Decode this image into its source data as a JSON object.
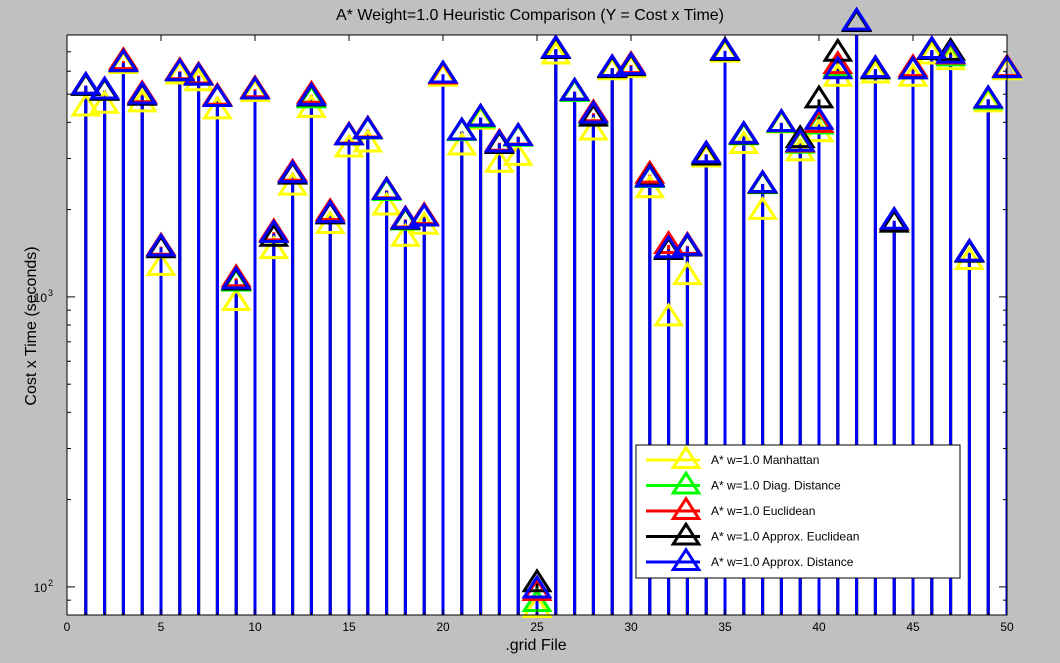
{
  "chart_data": {
    "type": "stem",
    "title": "A* Weight=1.0 Heuristic Comparison (Y = Cost x Time)",
    "xlabel": ".grid File",
    "ylabel": "Cost x Time (seconds)",
    "xlim": [
      0,
      50
    ],
    "ylim": [
      80,
      8000
    ],
    "yscale": "log",
    "x_ticks": [
      0,
      5,
      10,
      15,
      20,
      25,
      30,
      35,
      40,
      45,
      50
    ],
    "y_ticks": [
      {
        "value": 100,
        "base": "10",
        "exp": "2"
      },
      {
        "value": 1000,
        "base": "10",
        "exp": "3"
      }
    ],
    "grid": false,
    "legend_position": "lower-right",
    "marker": "triangle-up",
    "x": [
      1,
      2,
      3,
      4,
      5,
      6,
      7,
      8,
      9,
      10,
      11,
      12,
      13,
      14,
      15,
      16,
      17,
      18,
      19,
      20,
      21,
      22,
      23,
      24,
      25,
      26,
      27,
      28,
      29,
      30,
      31,
      32,
      33,
      34,
      35,
      36,
      37,
      38,
      39,
      40,
      41,
      42,
      43,
      44,
      45,
      46,
      47,
      48,
      49,
      50
    ],
    "series": [
      {
        "name": "A* w=1.0 Manhattan",
        "color": "#ffff00",
        "values": [
          4500,
          4600,
          6300,
          4650,
          1270,
          5800,
          5500,
          4400,
          960,
          5050,
          1450,
          2400,
          4450,
          1770,
          3250,
          3380,
          2050,
          1600,
          1760,
          5700,
          3300,
          4050,
          2880,
          3040,
          84,
          6800,
          5100,
          3720,
          6000,
          6100,
          2350,
          850,
          1180,
          3000,
          6900,
          3340,
          1980,
          3930,
          3150,
          3670,
          5700,
          8800,
          5850,
          1810,
          5700,
          6800,
          6500,
          1330,
          4650,
          6000
        ]
      },
      {
        "name": "A* w=1.0 Diag. Distance",
        "color": "#00ff00",
        "values": [
          5300,
          5100,
          6400,
          4950,
          1480,
          5950,
          5750,
          4850,
          1120,
          5150,
          1650,
          2650,
          4800,
          1920,
          3580,
          3750,
          2300,
          1820,
          1880,
          5850,
          3700,
          4100,
          3380,
          3540,
          88,
          7100,
          5050,
          4200,
          6100,
          6200,
          2550,
          1450,
          1480,
          3080,
          7000,
          3580,
          2430,
          3950,
          3350,
          3900,
          6150,
          8800,
          6050,
          1790,
          6050,
          7050,
          6700,
          1410,
          4750,
          6100
        ]
      },
      {
        "name": "A* w=1.0 Euclidean",
        "color": "#ff0000",
        "values": [
          5350,
          5150,
          6500,
          5000,
          1490,
          6000,
          5800,
          4900,
          1160,
          5200,
          1670,
          2680,
          4980,
          1960,
          3600,
          3780,
          2330,
          1850,
          1900,
          5800,
          3720,
          4150,
          3400,
          3570,
          96,
          7150,
          5100,
          4300,
          6150,
          6300,
          2640,
          1510,
          1500,
          3100,
          7050,
          3620,
          2450,
          3980,
          3380,
          3950,
          6300,
          8850,
          6100,
          1820,
          6150,
          7100,
          6800,
          1420,
          4800,
          6150
        ]
      },
      {
        "name": "A* w=1.0 Approx. Euclidean",
        "color": "#000000",
        "values": [
          5300,
          5100,
          6400,
          4900,
          1460,
          5950,
          5750,
          4850,
          1130,
          5150,
          1600,
          2620,
          4870,
          1910,
          3580,
          3760,
          2320,
          1830,
          1880,
          5850,
          3720,
          4150,
          3340,
          3560,
          103,
          7100,
          5100,
          4150,
          6100,
          6200,
          2580,
          1440,
          1480,
          3050,
          7000,
          3600,
          2440,
          3970,
          3500,
          4800,
          6950,
          8800,
          6050,
          1790,
          6050,
          7050,
          7000,
          1410,
          4800,
          6100
        ]
      },
      {
        "name": "A* w=1.0 Approx. Distance",
        "color": "#0000ff",
        "values": [
          5350,
          5150,
          6400,
          4950,
          1480,
          5950,
          5750,
          4850,
          1140,
          5150,
          1650,
          2650,
          4900,
          1930,
          3580,
          3760,
          2320,
          1840,
          1880,
          5850,
          3720,
          4150,
          3380,
          3560,
          98,
          7150,
          5100,
          4250,
          6150,
          6250,
          2560,
          1460,
          1490,
          3100,
          7050,
          3620,
          2450,
          3980,
          3400,
          4050,
          6050,
          8900,
          6100,
          1830,
          6050,
          7100,
          6850,
          1420,
          4800,
          6100
        ]
      }
    ]
  }
}
